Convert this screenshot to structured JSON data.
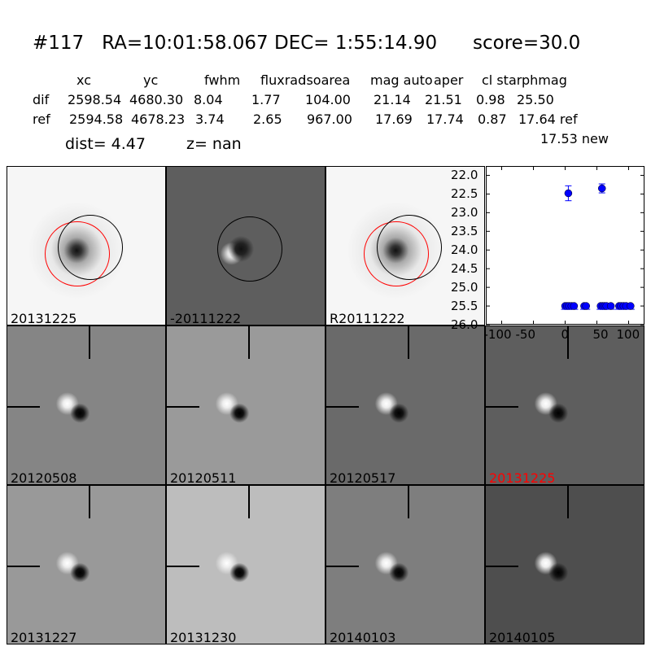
{
  "title": {
    "id": "#117",
    "ra": "RA=10:01:58.067",
    "dec": "DEC= 1:55:14.90",
    "score": "score=30.0"
  },
  "table": {
    "headers": [
      "xc",
      "yc",
      "fwhm",
      "fluxrad",
      "isoarea",
      "mag auto",
      "aper",
      "cl star",
      "phmag"
    ],
    "rows": [
      {
        "label": "dif",
        "values": [
          "2598.54",
          "4680.30",
          "8.04",
          "1.77",
          "104.00",
          "21.14",
          "21.51",
          "0.98",
          "25.50"
        ]
      },
      {
        "label": "ref",
        "values": [
          "2594.58",
          "4678.23",
          "3.74",
          "2.65",
          "967.00",
          "17.69",
          "17.74",
          "0.87",
          "17.64 ref"
        ]
      }
    ],
    "extra": "17.53 new",
    "dist": "dist=  4.47",
    "z": "z=   nan"
  },
  "panels": [
    {
      "label": "20131225",
      "bg": "#f6f6f6",
      "type": "new",
      "label_color": "#000000"
    },
    {
      "label": "-20111222",
      "bg": "#5e5e5e",
      "type": "diff",
      "label_color": "#000000"
    },
    {
      "label": "R20111222",
      "bg": "#f6f6f6",
      "type": "ref",
      "label_color": "#000000"
    },
    {
      "label": "20120508",
      "bg": "#858585",
      "type": "stamp",
      "label_color": "#000000"
    },
    {
      "label": "20120511",
      "bg": "#9a9a9a",
      "type": "stamp",
      "label_color": "#000000"
    },
    {
      "label": "20120517",
      "bg": "#6a6a6a",
      "type": "stamp",
      "label_color": "#000000"
    },
    {
      "label": "20131225",
      "bg": "#5e5e5e",
      "type": "stamp",
      "label_color": "#ff0000"
    },
    {
      "label": "20131227",
      "bg": "#999999",
      "type": "stamp",
      "label_color": "#000000"
    },
    {
      "label": "20131230",
      "bg": "#bdbdbd",
      "type": "stamp",
      "label_color": "#000000"
    },
    {
      "label": "20140103",
      "bg": "#7e7e7e",
      "type": "stamp",
      "label_color": "#000000"
    },
    {
      "label": "20140105",
      "bg": "#4e4e4e",
      "type": "stamp",
      "label_color": "#000000"
    }
  ],
  "chart_data": {
    "type": "scatter",
    "title": "",
    "xlabel": "",
    "ylabel": "",
    "xlim": [
      -125,
      125
    ],
    "ylim": [
      26.0,
      21.75
    ],
    "xticks": [
      -100,
      -50,
      0,
      50,
      100
    ],
    "yticks": [
      22.0,
      22.5,
      23.0,
      23.5,
      24.0,
      24.5,
      25.0,
      25.5,
      26.0
    ],
    "color": "#0000ff",
    "points": [
      {
        "x": 5,
        "y": 22.48,
        "err": 0.2
      },
      {
        "x": 58,
        "y": 22.35,
        "err": 0.12
      },
      {
        "x": 0,
        "y": 25.5
      },
      {
        "x": 3,
        "y": 25.5
      },
      {
        "x": 6,
        "y": 25.5
      },
      {
        "x": 10,
        "y": 25.5
      },
      {
        "x": 14,
        "y": 25.5
      },
      {
        "x": 30,
        "y": 25.5
      },
      {
        "x": 33,
        "y": 25.5
      },
      {
        "x": 56,
        "y": 25.5
      },
      {
        "x": 59,
        "y": 25.5
      },
      {
        "x": 62,
        "y": 25.5
      },
      {
        "x": 65,
        "y": 25.5
      },
      {
        "x": 72,
        "y": 25.5
      },
      {
        "x": 85,
        "y": 25.5
      },
      {
        "x": 88,
        "y": 25.5
      },
      {
        "x": 92,
        "y": 25.5
      },
      {
        "x": 96,
        "y": 25.5
      },
      {
        "x": 103,
        "y": 25.5
      }
    ]
  }
}
